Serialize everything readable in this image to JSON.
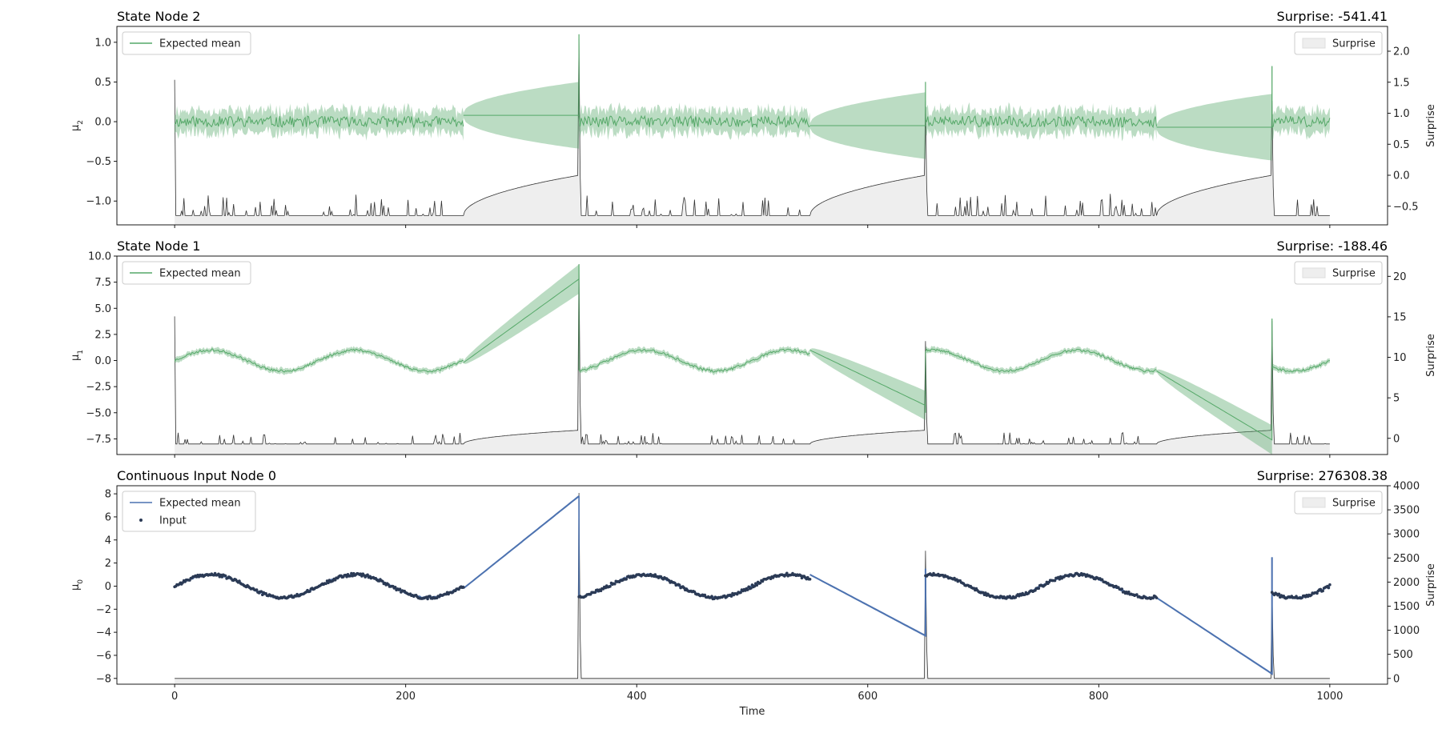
{
  "colors": {
    "mean_green": "#55a868",
    "band_green": "#55a868",
    "mean_blue": "#4c72b0",
    "input_dot": "#2b3a55",
    "surprise_line": "#333333",
    "surprise_fill": "#eeeeee"
  },
  "chart_data": [
    {
      "type": "line",
      "id": "state2",
      "title": "State Node 2",
      "surprise_text": "Surprise: -541.41",
      "ylabel_base": "μ",
      "ylabel_sub": "2",
      "y2label": "Surprise",
      "xlim": [
        -50,
        1050
      ],
      "ylim": [
        -1.3,
        1.2
      ],
      "y2lim": [
        -0.8,
        2.4
      ],
      "yticks": [
        "−1.0",
        "−0.5",
        "0.0",
        "0.5",
        "1.0"
      ],
      "ytick_values": [
        -1.0,
        -0.5,
        0.0,
        0.5,
        1.0
      ],
      "y2ticks": [
        "−0.5",
        "0.0",
        "0.5",
        "1.0",
        "1.5",
        "2.0"
      ],
      "y2tick_values": [
        -0.5,
        0.0,
        0.5,
        1.0,
        1.5,
        2.0
      ],
      "xticks": [
        "0",
        "200",
        "400",
        "600",
        "800",
        "1000"
      ],
      "xtick_values": [
        0,
        200,
        400,
        600,
        800,
        1000
      ],
      "show_xticklabels": false,
      "legend_left": [
        "Expected mean"
      ],
      "legend_right": "Surprise",
      "segments": [
        {
          "start": 0,
          "end": 250,
          "amp": 0.0,
          "noise": 0.07,
          "offset": 0.0
        },
        {
          "start": 350,
          "end": 550,
          "amp": 0.0,
          "noise": 0.07,
          "offset": 0.0
        },
        {
          "start": 650,
          "end": 850,
          "amp": 0.0,
          "noise": 0.07,
          "offset": 0.0
        },
        {
          "start": 950,
          "end": 1000,
          "amp": 0.0,
          "noise": 0.07,
          "offset": 0.0
        }
      ],
      "gaps": [
        {
          "start": 250,
          "end": 350,
          "from": 0.08,
          "to": 0.08,
          "width_from": 0.03,
          "width_to": 0.42,
          "spike_end": 1.1
        },
        {
          "start": 550,
          "end": 650,
          "from": -0.05,
          "to": -0.05,
          "width_from": 0.03,
          "width_to": 0.42,
          "spike_end": 0.5
        },
        {
          "start": 850,
          "end": 950,
          "from": -0.07,
          "to": -0.07,
          "width_from": 0.03,
          "width_to": 0.42,
          "spike_end": 0.7
        }
      ],
      "band_width": 0.14,
      "surprise_base": -0.65,
      "surprise_gap_top": 0.0,
      "surprise_spikes": [
        2.2,
        1.2,
        1.2
      ],
      "surprise_noise": 0.35,
      "seed": 11
    },
    {
      "type": "line",
      "id": "state1",
      "title": "State Node 1",
      "surprise_text": "Surprise: -188.46",
      "ylabel_base": "μ",
      "ylabel_sub": "1",
      "y2label": "Surprise",
      "xlim": [
        -50,
        1050
      ],
      "ylim": [
        -9.0,
        10.0
      ],
      "y2lim": [
        -2.0,
        22.5
      ],
      "yticks": [
        "−7.5",
        "−5.0",
        "−2.5",
        "0.0",
        "2.5",
        "5.0",
        "7.5",
        "10.0"
      ],
      "ytick_values": [
        -7.5,
        -5.0,
        -2.5,
        0.0,
        2.5,
        5.0,
        7.5,
        10.0
      ],
      "y2ticks": [
        "0",
        "5",
        "10",
        "15",
        "20"
      ],
      "y2tick_values": [
        0,
        5,
        10,
        15,
        20
      ],
      "xticks": [
        "0",
        "200",
        "400",
        "600",
        "800",
        "1000"
      ],
      "xtick_values": [
        0,
        200,
        400,
        600,
        800,
        1000
      ],
      "show_xticklabels": false,
      "legend_left": [
        "Expected mean"
      ],
      "legend_right": "Surprise",
      "segments": [
        {
          "start": 0,
          "end": 250,
          "amp": 1.0,
          "noise": 0.12,
          "offset": 0.0
        },
        {
          "start": 350,
          "end": 550,
          "amp": 1.0,
          "noise": 0.12,
          "offset": 0.0
        },
        {
          "start": 650,
          "end": 850,
          "amp": 1.0,
          "noise": 0.12,
          "offset": 0.0
        },
        {
          "start": 950,
          "end": 1000,
          "amp": 1.0,
          "noise": 0.12,
          "offset": 0.0
        }
      ],
      "gaps": [
        {
          "start": 250,
          "end": 350,
          "from": -0.2,
          "to": 7.8,
          "width_from": 0.1,
          "width_to": 1.4,
          "spike_end": 9.2
        },
        {
          "start": 550,
          "end": 650,
          "from": 1.0,
          "to": -4.3,
          "width_from": 0.1,
          "width_to": 1.4,
          "spike_end": -5.0
        },
        {
          "start": 850,
          "end": 950,
          "from": -1.0,
          "to": -7.6,
          "width_from": 0.1,
          "width_to": 1.4,
          "spike_end": 4.0
        }
      ],
      "band_width": 0.25,
      "surprise_base": -0.7,
      "surprise_gap_top": 1.0,
      "surprise_spikes": [
        21.5,
        12.0,
        14.5
      ],
      "surprise_noise": 1.4,
      "seed": 23
    },
    {
      "type": "line",
      "id": "input0",
      "title": "Continuous Input Node 0",
      "surprise_text": "Surprise: 276308.38",
      "ylabel_base": "μ",
      "ylabel_sub": "0",
      "y2label": "Surprise",
      "xlabel": "Time",
      "xlim": [
        -50,
        1050
      ],
      "ylim": [
        -8.5,
        8.7
      ],
      "y2lim": [
        -120,
        4000
      ],
      "yticks": [
        "−8",
        "−6",
        "−4",
        "−2",
        "0",
        "2",
        "4",
        "6",
        "8"
      ],
      "ytick_values": [
        -8,
        -6,
        -4,
        -2,
        0,
        2,
        4,
        6,
        8
      ],
      "y2ticks": [
        "0",
        "500",
        "1000",
        "1500",
        "2000",
        "2500",
        "3000",
        "3500",
        "4000"
      ],
      "y2tick_values": [
        0,
        500,
        1000,
        1500,
        2000,
        2500,
        3000,
        3500,
        4000
      ],
      "xticks": [
        "0",
        "200",
        "400",
        "600",
        "800",
        "1000"
      ],
      "xtick_values": [
        0,
        200,
        400,
        600,
        800,
        1000
      ],
      "show_xticklabels": true,
      "legend_left": [
        "Expected mean",
        "Input"
      ],
      "legend_right": "Surprise",
      "segments": [
        {
          "start": 0,
          "end": 250,
          "amp": 1.0,
          "noise": 0.08,
          "offset": 0.0
        },
        {
          "start": 350,
          "end": 550,
          "amp": 1.0,
          "noise": 0.08,
          "offset": 0.0
        },
        {
          "start": 650,
          "end": 850,
          "amp": 1.0,
          "noise": 0.08,
          "offset": 0.0
        },
        {
          "start": 950,
          "end": 1000,
          "amp": 1.0,
          "noise": 0.08,
          "offset": 0.0
        }
      ],
      "gaps": [
        {
          "start": 250,
          "end": 350,
          "from": -0.2,
          "to": 7.8,
          "width_from": 0.05,
          "width_to": 0.1,
          "spike_end": 7.8
        },
        {
          "start": 550,
          "end": 650,
          "from": 1.0,
          "to": -4.3,
          "width_from": 0.05,
          "width_to": 0.1,
          "spike_end": 1.5
        },
        {
          "start": 850,
          "end": 950,
          "from": -1.0,
          "to": -7.6,
          "width_from": 0.05,
          "width_to": 0.1,
          "spike_end": 2.5
        }
      ],
      "band_width": 0.06,
      "surprise_base": 0,
      "surprise_gap_top": 0,
      "surprise_spikes": [
        3850,
        2650,
        1900
      ],
      "surprise_noise": 0,
      "seed": 37
    }
  ]
}
